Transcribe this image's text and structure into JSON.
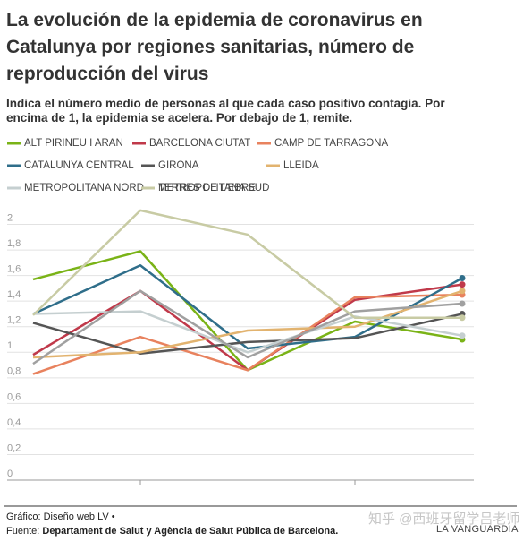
{
  "chart_data": {
    "type": "line",
    "title": "La evolución de la epidemia de coronavirus en Catalunya por regiones sanitarias, número de reproducción del virus",
    "subtitle": "Indica el número medio de personas al que cada caso positivo contagia. Por encima de 1, la epidemia se acelera. Por debajo de 1, remite.",
    "categories": [
      null,
      null,
      null,
      null,
      null
    ],
    "series": [
      {
        "name": "ALT PIRINEU I ARAN",
        "color": "#7ab317",
        "values": [
          1.57,
          1.79,
          0.86,
          1.24,
          1.1
        ]
      },
      {
        "name": "BARCELONA CIUTAT",
        "color": "#c0394a",
        "values": [
          0.98,
          1.48,
          0.86,
          1.41,
          1.53
        ]
      },
      {
        "name": "CAMP DE TARRAGONA",
        "color": "#e8825e",
        "values": [
          0.83,
          1.12,
          0.86,
          1.43,
          1.45
        ]
      },
      {
        "name": "CATALUNYA CENTRAL",
        "color": "#2f6e8a",
        "values": [
          1.3,
          1.68,
          1.03,
          1.12,
          1.58
        ]
      },
      {
        "name": "GIRONA",
        "color": "#555555",
        "values": [
          1.23,
          0.99,
          1.08,
          1.11,
          1.3
        ]
      },
      {
        "name": "LLEIDA",
        "color": "#e2b36f",
        "values": [
          0.96,
          1.0,
          1.17,
          1.2,
          1.48
        ]
      },
      {
        "name": "METROPOLITANA NORD",
        "color": "#c5cfd0",
        "values": [
          1.3,
          1.32,
          1.0,
          1.28,
          1.13
        ]
      },
      {
        "name": "METROPOLITANA SUD",
        "color": "#a0a0a0",
        "values": [
          0.91,
          1.48,
          0.96,
          1.32,
          1.38
        ]
      },
      {
        "name": "TERRES DE L'EBRE",
        "color": "#c8cba4",
        "values": [
          1.29,
          2.11,
          1.92,
          1.27,
          1.27
        ]
      }
    ],
    "ylim": [
      0,
      2.2
    ],
    "yticks": [
      0,
      {
        "value": 0.2,
        "label": "0,2"
      },
      {
        "value": 0.4,
        "label": "0,4"
      },
      {
        "value": 0.6,
        "label": "0,6"
      },
      {
        "value": 0.8,
        "label": "0,8"
      },
      1,
      {
        "value": 1.2,
        "label": "1,2"
      },
      {
        "value": 1.4,
        "label": "1,4"
      },
      {
        "value": 1.6,
        "label": "1,6"
      },
      {
        "value": 1.8,
        "label": "1,8"
      },
      2
    ],
    "grid": true,
    "credit": "Gráfico: Diseño web LV •",
    "source_label": "Fuente:",
    "source": "Departament de Salut y Agència de Salut Pública de Barcelona.",
    "logo": "LA VANGUARDIA",
    "watermark": "知乎 @西班牙留学吕老师"
  }
}
